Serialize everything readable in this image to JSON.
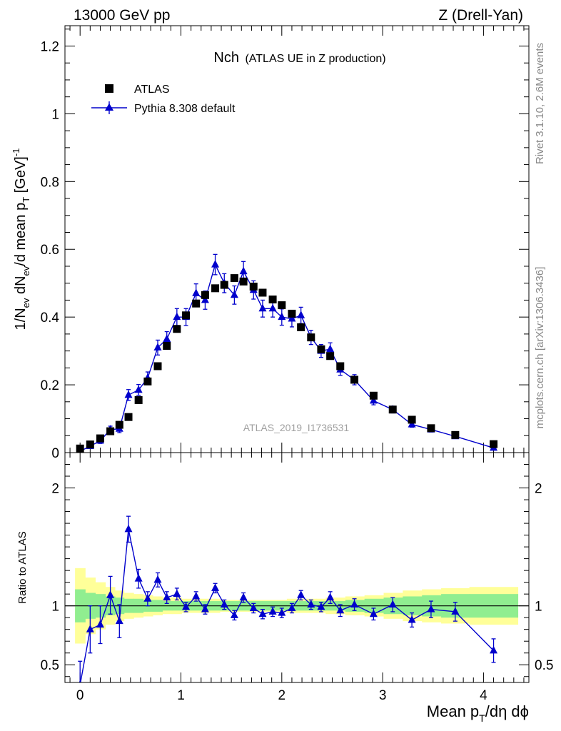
{
  "header": {
    "left": "13000 GeV pp",
    "right": "Z (Drell-Yan)"
  },
  "side_labels": {
    "rivet": "Rivet 3.1.10,  2.6M events",
    "mcplots": "mcplots.cern.ch [arXiv:1306.3436]"
  },
  "colors": {
    "data": "#000000",
    "mc": "#0000cc",
    "band_inner": "#90ee90",
    "band_outer": "#ffff99"
  },
  "chart_data": [
    {
      "type": "scatter",
      "title_main": "Nch",
      "title_sub": "(ATLAS UE in Z production)",
      "ylabel": "1/N",
      "ylabel_parts": [
        "1/N",
        "ev",
        " dN",
        "ev",
        "/d mean p",
        "T",
        " [GeV]",
        "-1"
      ],
      "watermark": "ATLAS_2019_I1736531",
      "xlim": [
        -0.15,
        4.45
      ],
      "ylim": [
        0,
        1.26
      ],
      "yticks": [
        0,
        0.2,
        0.4,
        0.6,
        0.8,
        1,
        1.2
      ],
      "ytick_labels": [
        "0",
        "0.2",
        "0.4",
        "0.6",
        "0.8",
        "1",
        "1.2"
      ],
      "legend_position": "top-left",
      "series": [
        {
          "name": "ATLAS",
          "marker": "square",
          "x": [
            0.0,
            0.1,
            0.2,
            0.3,
            0.39,
            0.48,
            0.58,
            0.67,
            0.77,
            0.86,
            0.96,
            1.05,
            1.15,
            1.24,
            1.34,
            1.43,
            1.53,
            1.62,
            1.72,
            1.81,
            1.91,
            2.0,
            2.1,
            2.19,
            2.29,
            2.39,
            2.48,
            2.58,
            2.72,
            2.91,
            3.1,
            3.29,
            3.48,
            3.72,
            4.1
          ],
          "y": [
            0.012,
            0.024,
            0.042,
            0.063,
            0.082,
            0.105,
            0.155,
            0.21,
            0.255,
            0.315,
            0.365,
            0.405,
            0.44,
            0.465,
            0.485,
            0.495,
            0.515,
            0.505,
            0.49,
            0.472,
            0.452,
            0.435,
            0.41,
            0.37,
            0.34,
            0.305,
            0.285,
            0.255,
            0.215,
            0.168,
            0.127,
            0.097,
            0.072,
            0.052,
            0.025
          ]
        },
        {
          "name": "Pythia 8.308 default",
          "marker": "triangle",
          "x": [
            0.0,
            0.1,
            0.2,
            0.3,
            0.39,
            0.48,
            0.58,
            0.67,
            0.77,
            0.86,
            0.96,
            1.05,
            1.15,
            1.24,
            1.34,
            1.43,
            1.53,
            1.62,
            1.72,
            1.81,
            1.91,
            2.0,
            2.1,
            2.19,
            2.29,
            2.39,
            2.48,
            2.58,
            2.72,
            2.91,
            3.1,
            3.29,
            3.48,
            3.72,
            4.1
          ],
          "y": [
            0.004,
            0.019,
            0.035,
            0.068,
            0.07,
            0.17,
            0.185,
            0.22,
            0.31,
            0.335,
            0.4,
            0.4,
            0.47,
            0.45,
            0.555,
            0.5,
            0.465,
            0.535,
            0.48,
            0.425,
            0.425,
            0.4,
            0.395,
            0.405,
            0.34,
            0.3,
            0.305,
            0.245,
            0.215,
            0.153,
            0.127,
            0.083,
            0.068,
            0.048,
            0.014
          ],
          "err": [
            0.003,
            0.006,
            0.008,
            0.01,
            0.011,
            0.016,
            0.016,
            0.018,
            0.022,
            0.022,
            0.025,
            0.025,
            0.028,
            0.027,
            0.03,
            0.028,
            0.027,
            0.029,
            0.027,
            0.025,
            0.025,
            0.024,
            0.024,
            0.024,
            0.021,
            0.019,
            0.019,
            0.017,
            0.015,
            0.012,
            0.01,
            0.008,
            0.007,
            0.006,
            0.004
          ]
        }
      ]
    },
    {
      "type": "line",
      "ylabel": "Ratio to ATLAS",
      "xlabel": "Mean p",
      "xlabel_parts": [
        "Mean p",
        "T",
        "/dη dϕ"
      ],
      "xlim": [
        -0.15,
        4.45
      ],
      "ylim": [
        0.35,
        2.3
      ],
      "xticks": [
        0,
        1,
        2,
        3,
        4
      ],
      "xtick_labels": [
        "0",
        "1",
        "2",
        "3",
        "4"
      ],
      "yticks": [
        0.5,
        1,
        2
      ],
      "ytick_labels": [
        "0.5",
        "1",
        "2"
      ],
      "reference_line": 1,
      "bands": {
        "edges": [
          -0.05,
          0.05,
          0.15,
          0.25,
          0.345,
          0.435,
          0.53,
          0.625,
          0.72,
          0.815,
          0.91,
          1.005,
          1.1,
          1.195,
          1.29,
          1.385,
          1.48,
          1.575,
          1.67,
          1.765,
          1.86,
          1.955,
          2.05,
          2.145,
          2.24,
          2.34,
          2.435,
          2.53,
          2.63,
          2.82,
          3.01,
          3.2,
          3.39,
          3.58,
          3.86,
          4.34
        ],
        "inner_low": [
          0.86,
          0.89,
          0.9,
          0.92,
          0.93,
          0.94,
          0.94,
          0.95,
          0.95,
          0.96,
          0.96,
          0.96,
          0.96,
          0.96,
          0.96,
          0.96,
          0.96,
          0.96,
          0.96,
          0.96,
          0.96,
          0.96,
          0.96,
          0.96,
          0.96,
          0.96,
          0.96,
          0.96,
          0.95,
          0.94,
          0.93,
          0.92,
          0.91,
          0.9,
          0.9
        ],
        "inner_high": [
          1.14,
          1.11,
          1.1,
          1.08,
          1.07,
          1.06,
          1.06,
          1.05,
          1.05,
          1.04,
          1.04,
          1.04,
          1.04,
          1.04,
          1.04,
          1.04,
          1.04,
          1.04,
          1.04,
          1.04,
          1.04,
          1.04,
          1.04,
          1.04,
          1.04,
          1.04,
          1.04,
          1.04,
          1.05,
          1.06,
          1.07,
          1.08,
          1.09,
          1.1,
          1.1
        ],
        "outer_low": [
          0.68,
          0.76,
          0.8,
          0.84,
          0.87,
          0.89,
          0.9,
          0.91,
          0.92,
          0.93,
          0.93,
          0.94,
          0.94,
          0.94,
          0.94,
          0.95,
          0.95,
          0.95,
          0.95,
          0.95,
          0.95,
          0.95,
          0.94,
          0.94,
          0.94,
          0.94,
          0.93,
          0.93,
          0.92,
          0.91,
          0.89,
          0.87,
          0.86,
          0.85,
          0.84
        ],
        "outer_high": [
          1.32,
          1.24,
          1.2,
          1.16,
          1.13,
          1.11,
          1.1,
          1.09,
          1.08,
          1.07,
          1.07,
          1.06,
          1.06,
          1.06,
          1.06,
          1.05,
          1.05,
          1.05,
          1.05,
          1.05,
          1.05,
          1.05,
          1.06,
          1.06,
          1.06,
          1.06,
          1.07,
          1.07,
          1.08,
          1.09,
          1.11,
          1.13,
          1.14,
          1.15,
          1.16
        ]
      },
      "series": [
        {
          "name": "Pythia 8.308 default",
          "marker": "triangle",
          "x": [
            0.0,
            0.1,
            0.2,
            0.3,
            0.39,
            0.48,
            0.58,
            0.67,
            0.77,
            0.86,
            0.96,
            1.05,
            1.15,
            1.24,
            1.34,
            1.43,
            1.53,
            1.62,
            1.72,
            1.81,
            1.91,
            2.0,
            2.1,
            2.19,
            2.29,
            2.39,
            2.48,
            2.58,
            2.72,
            2.91,
            3.1,
            3.29,
            3.48,
            3.72,
            4.1
          ],
          "y": [
            0.33,
            0.8,
            0.84,
            1.09,
            0.87,
            1.65,
            1.23,
            1.06,
            1.22,
            1.07,
            1.1,
            0.99,
            1.08,
            0.97,
            1.15,
            1.01,
            0.92,
            1.07,
            0.98,
            0.93,
            0.95,
            0.94,
            0.98,
            1.09,
            1.01,
            0.99,
            1.07,
            0.96,
            1.01,
            0.93,
            1.01,
            0.88,
            0.97,
            0.95,
            0.62
          ],
          "err": [
            0.2,
            0.2,
            0.16,
            0.16,
            0.14,
            0.11,
            0.08,
            0.06,
            0.06,
            0.05,
            0.05,
            0.04,
            0.04,
            0.04,
            0.04,
            0.04,
            0.04,
            0.04,
            0.04,
            0.04,
            0.04,
            0.04,
            0.04,
            0.04,
            0.04,
            0.04,
            0.05,
            0.05,
            0.05,
            0.05,
            0.06,
            0.06,
            0.07,
            0.08,
            0.1
          ]
        }
      ]
    }
  ]
}
